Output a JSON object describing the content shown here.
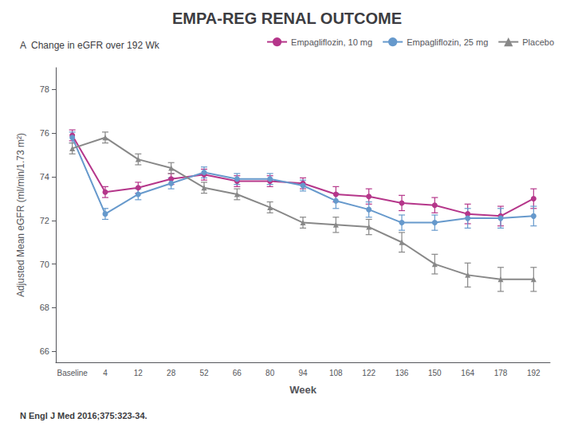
{
  "chart_data": {
    "type": "line",
    "title": "EMPA-REG RENAL OUTCOME",
    "subtitle": "A  Change in eGFR over 192 Wk",
    "xlabel": "Week",
    "ylabel": "Adjusted Mean eGFR (ml/min/1.73 m²)",
    "annotations": [
      "N Engl J Med 2016;375:323-34."
    ],
    "categories": [
      "Baseline",
      "4",
      "12",
      "28",
      "52",
      "66",
      "80",
      "94",
      "108",
      "122",
      "136",
      "150",
      "164",
      "178",
      "192"
    ],
    "series": [
      {
        "name": "Empagliflozin, 10 mg",
        "color": "#B5368A",
        "marker": "circle",
        "values": [
          75.9,
          73.3,
          73.5,
          73.9,
          74.1,
          73.8,
          73.8,
          73.7,
          73.2,
          73.1,
          72.8,
          72.7,
          72.3,
          72.2,
          73.0
        ],
        "errors": [
          0.25,
          0.25,
          0.25,
          0.25,
          0.25,
          0.25,
          0.25,
          0.25,
          0.35,
          0.35,
          0.35,
          0.35,
          0.45,
          0.45,
          0.45
        ]
      },
      {
        "name": "Empagliflozin, 25 mg",
        "color": "#6699CC",
        "marker": "circle",
        "values": [
          75.8,
          72.3,
          73.2,
          73.7,
          74.2,
          73.9,
          73.9,
          73.6,
          72.9,
          72.5,
          71.9,
          71.9,
          72.1,
          72.1,
          72.2
        ],
        "errors": [
          0.25,
          0.25,
          0.25,
          0.25,
          0.25,
          0.25,
          0.25,
          0.25,
          0.35,
          0.35,
          0.35,
          0.35,
          0.45,
          0.45,
          0.45
        ]
      },
      {
        "name": "Placebo",
        "color": "#888888",
        "marker": "triangle",
        "values": [
          75.3,
          75.8,
          74.8,
          74.4,
          73.5,
          73.2,
          72.6,
          71.9,
          71.8,
          71.7,
          71.0,
          70.0,
          69.5,
          69.3,
          69.3
        ],
        "errors": [
          0.25,
          0.25,
          0.25,
          0.25,
          0.25,
          0.25,
          0.25,
          0.25,
          0.35,
          0.35,
          0.45,
          0.45,
          0.55,
          0.55,
          0.55
        ]
      }
    ],
    "ylim": [
      65.5,
      79
    ],
    "yticks": [
      66,
      68,
      70,
      72,
      74,
      76,
      78
    ],
    "grid": false,
    "legend": "top-right"
  }
}
